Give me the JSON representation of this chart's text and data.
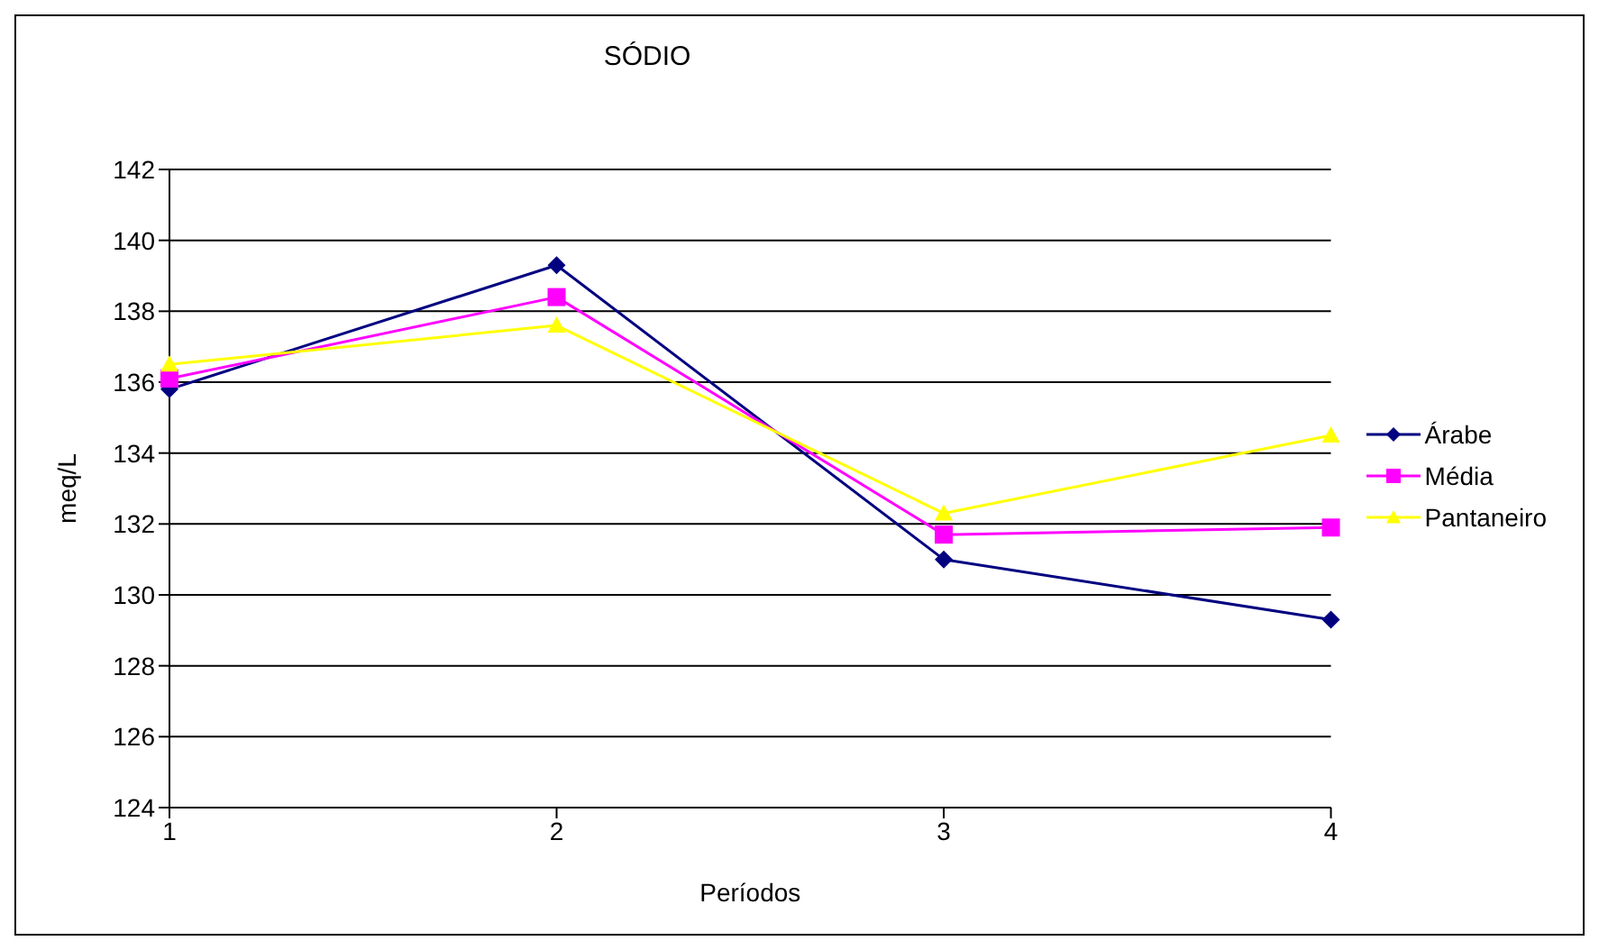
{
  "chart_data": {
    "type": "line",
    "title": "SÓDIO",
    "xlabel": "Períodos",
    "ylabel": "meq/L",
    "categories": [
      "1",
      "2",
      "3",
      "4"
    ],
    "series": [
      {
        "name": "Árabe",
        "color": "#000080",
        "marker": "diamond",
        "values": [
          135.8,
          139.3,
          131.0,
          129.3
        ]
      },
      {
        "name": "Média",
        "color": "#ff00ff",
        "marker": "square",
        "values": [
          136.1,
          138.4,
          131.7,
          131.9
        ]
      },
      {
        "name": "Pantaneiro",
        "color": "#ffff00",
        "marker": "triangle",
        "values": [
          136.5,
          137.6,
          132.3,
          134.5
        ]
      }
    ],
    "ylim": [
      124,
      142
    ],
    "yticks": [
      124,
      126,
      128,
      130,
      132,
      134,
      136,
      138,
      140,
      142
    ],
    "grid": "y",
    "legend": "right"
  }
}
